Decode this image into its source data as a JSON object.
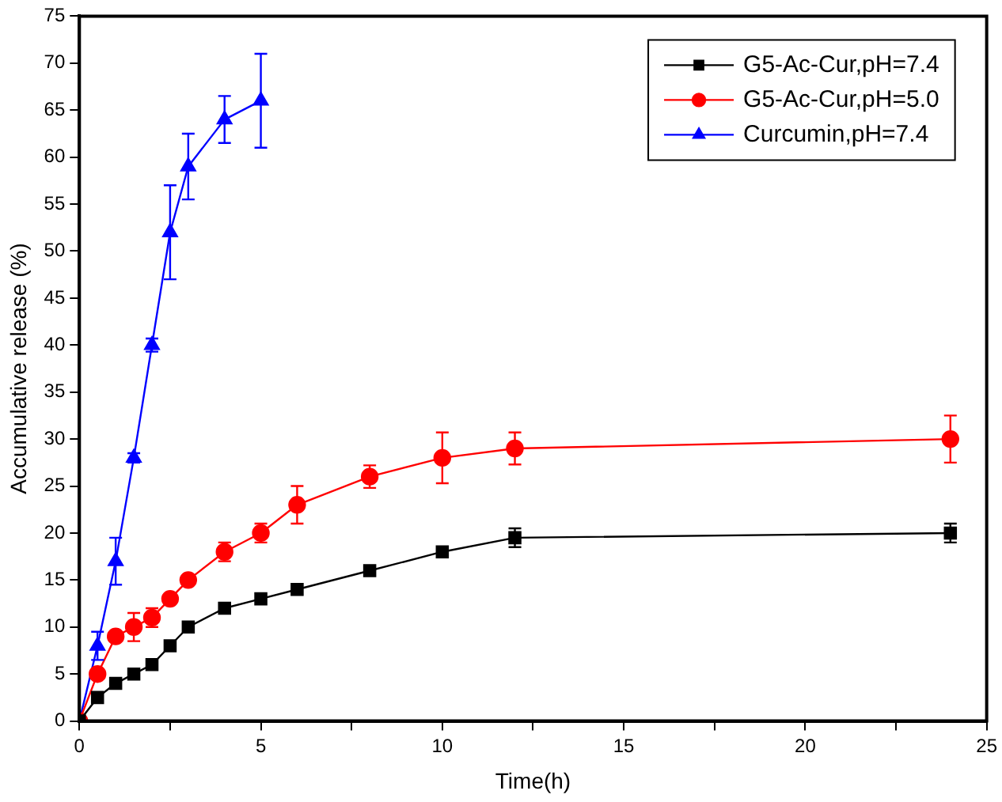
{
  "chart_data": {
    "type": "line",
    "xlabel": "Time(h)",
    "ylabel": "Accumulative release (%)",
    "xlim": [
      0,
      25
    ],
    "ylim": [
      0,
      75
    ],
    "xticks": [
      0,
      {
        "value": 2.5,
        "label": null
      },
      5,
      {
        "value": 7.5,
        "label": null
      },
      10,
      {
        "value": 12.5,
        "label": null
      },
      15,
      {
        "value": 17.5,
        "label": null
      },
      20,
      {
        "value": 22.5,
        "label": null
      },
      25
    ],
    "yticks": [
      0,
      5,
      10,
      15,
      20,
      25,
      30,
      35,
      40,
      45,
      50,
      55,
      60,
      65,
      70,
      75
    ],
    "grid": false,
    "legend": "top right",
    "line_style": "solid",
    "series": [
      {
        "name": "G5-Ac-Cur,pH=7.4",
        "color": "#000000",
        "marker": "square",
        "x": [
          0,
          0.5,
          1,
          1.5,
          2,
          2.5,
          3,
          4,
          5,
          6,
          8,
          10,
          12,
          24
        ],
        "values": [
          0,
          2.5,
          4,
          5,
          6,
          8,
          10,
          12,
          13,
          14,
          16,
          18,
          19.5,
          20
        ],
        "errors": [
          null,
          null,
          null,
          null,
          null,
          null,
          null,
          null,
          null,
          null,
          null,
          null,
          1,
          1
        ]
      },
      {
        "name": "G5-Ac-Cur,pH=5.0",
        "color": "#ff0000",
        "marker": "circle",
        "x": [
          0,
          0.5,
          1,
          1.5,
          2,
          2.5,
          3,
          4,
          5,
          6,
          8,
          10,
          12,
          24
        ],
        "values": [
          0,
          5,
          9,
          10,
          11,
          13,
          15,
          18,
          20,
          23,
          26,
          28,
          29,
          30
        ],
        "errors": [
          null,
          null,
          null,
          1.5,
          1,
          null,
          null,
          1,
          1,
          2,
          1.2,
          2.7,
          1.7,
          2.5
        ]
      },
      {
        "name": "Curcumin,pH=7.4",
        "color": "#0000ff",
        "marker": "triangle",
        "x": [
          0,
          0.5,
          1,
          1.5,
          2,
          2.5,
          3,
          4,
          5
        ],
        "values": [
          0,
          8,
          17,
          28,
          40,
          52,
          59,
          64,
          66
        ],
        "errors": [
          null,
          1.5,
          2.5,
          0.5,
          0.7,
          5,
          3.5,
          2.5,
          5
        ]
      }
    ]
  }
}
